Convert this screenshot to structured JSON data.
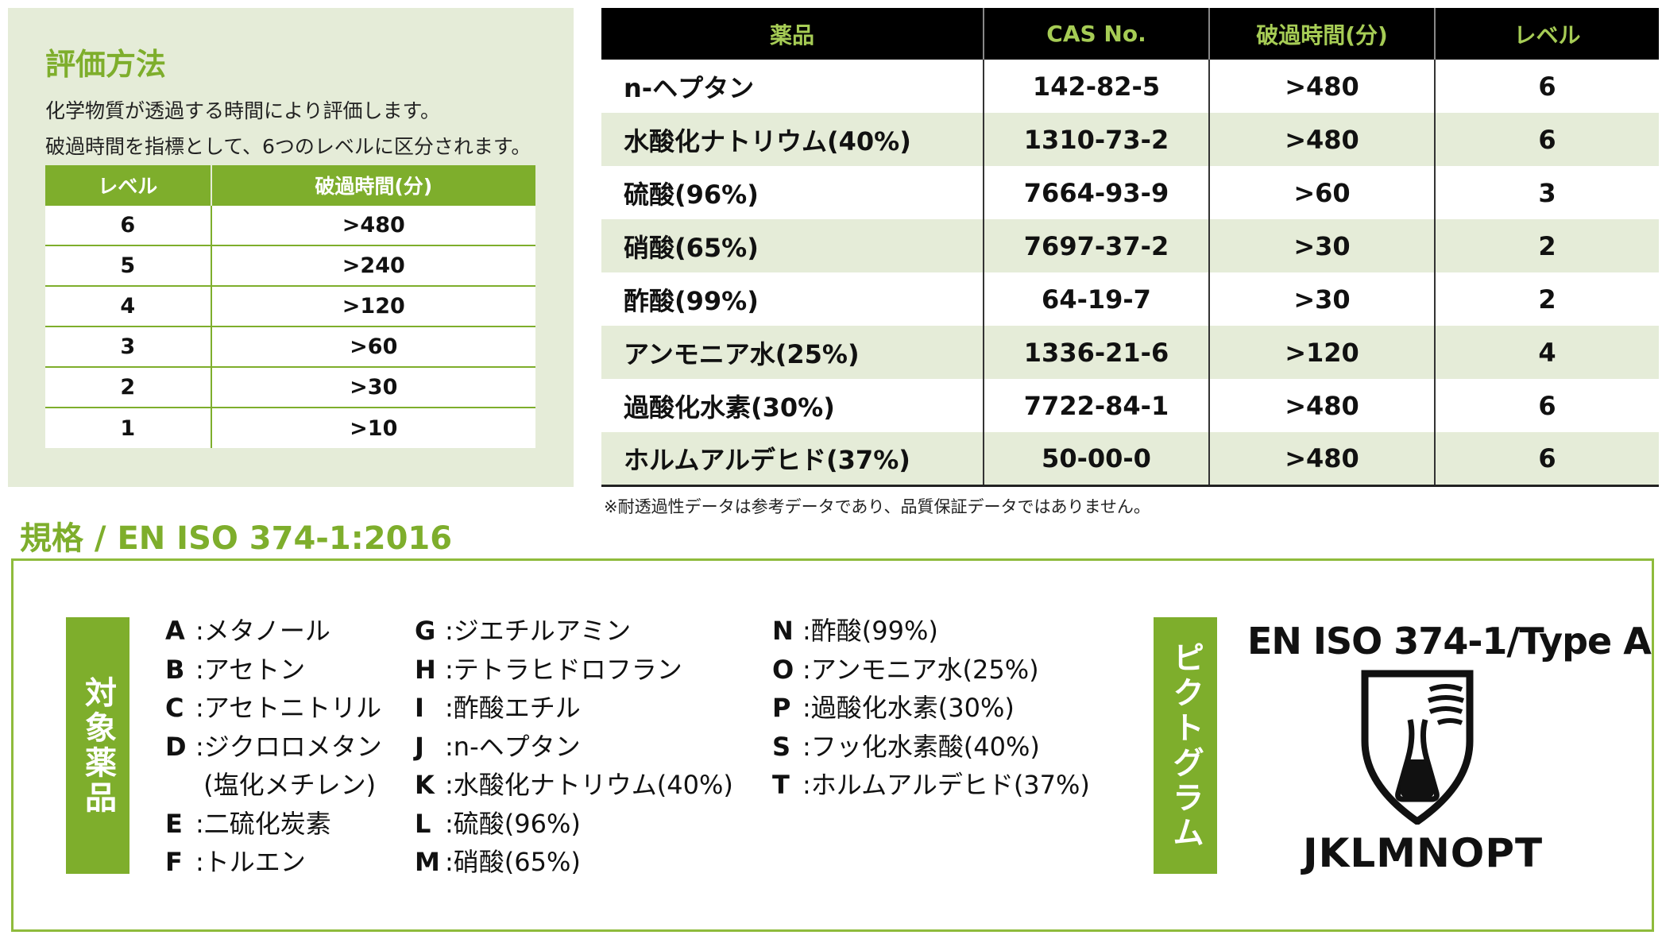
{
  "evaluation": {
    "title": "評価方法",
    "desc_line1": "化学物質が透過する時間により評価します。",
    "desc_line2": "破過時間を指標として、6つのレベルに区分されます。",
    "table": {
      "headers": [
        "レベル",
        "破過時間(分)"
      ],
      "rows": [
        [
          "6",
          ">480"
        ],
        [
          "5",
          ">240"
        ],
        [
          "4",
          ">120"
        ],
        [
          "3",
          ">60"
        ],
        [
          "2",
          ">30"
        ],
        [
          "1",
          ">10"
        ]
      ]
    }
  },
  "permeation_table": {
    "headers": [
      "薬品",
      "CAS No.",
      "破過時間(分)",
      "レベル"
    ],
    "rows": [
      [
        "n-ヘプタン",
        "142-82-5",
        ">480",
        "6"
      ],
      [
        "水酸化ナトリウム(40%)",
        "1310-73-2",
        ">480",
        "6"
      ],
      [
        "硫酸(96%)",
        "7664-93-9",
        ">60",
        "3"
      ],
      [
        "硝酸(65%)",
        "7697-37-2",
        ">30",
        "2"
      ],
      [
        "酢酸(99%)",
        "64-19-7",
        ">30",
        "2"
      ],
      [
        "アンモニア水(25%)",
        "1336-21-6",
        ">120",
        "4"
      ],
      [
        "過酸化水素(30%)",
        "7722-84-1",
        ">480",
        "6"
      ],
      [
        "ホルムアルデヒド(37%)",
        "50-00-0",
        ">480",
        "6"
      ]
    ],
    "note": "※耐透過性データは参考データであり、品質保証データではありません。"
  },
  "standard": {
    "title": "規格 / EN ISO 374-1:2016",
    "target_label": "対象薬品",
    "chemicals_col1": [
      {
        "key": "A",
        "name": "メタノール"
      },
      {
        "key": "B",
        "name": "アセトン"
      },
      {
        "key": "C",
        "name": "アセトニトリル"
      },
      {
        "key": "D",
        "name": "ジクロロメタン"
      },
      {
        "key": "",
        "name": "(塩化メチレン)"
      },
      {
        "key": "E",
        "name": "二硫化炭素"
      },
      {
        "key": "F",
        "name": "トルエン"
      }
    ],
    "chemicals_col2": [
      {
        "key": "G",
        "name": "ジエチルアミン"
      },
      {
        "key": "H",
        "name": "テトラヒドロフラン"
      },
      {
        "key": "I",
        "name": "酢酸エチル"
      },
      {
        "key": "J",
        "name": "n-ヘプタン"
      },
      {
        "key": "K",
        "name": "水酸化ナトリウム(40%)"
      },
      {
        "key": "L",
        "name": "硫酸(96%)"
      },
      {
        "key": "M",
        "name": "硝酸(65%)"
      }
    ],
    "chemicals_col3": [
      {
        "key": "N",
        "name": "酢酸(99%)"
      },
      {
        "key": "O",
        "name": "アンモニア水(25%)"
      },
      {
        "key": "P",
        "name": "過酸化水素(30%)"
      },
      {
        "key": "S",
        "name": "フッ化水素酸(40%)"
      },
      {
        "key": "T",
        "name": "ホルムアルデヒド(37%)"
      }
    ],
    "pictogram_label": "ピクトグラム",
    "pictogram_title": "EN ISO 374-1/Type A",
    "pictogram_icon": "chemical-flask-shield-icon",
    "pictogram_code": "JKLMNOPT"
  },
  "colors": {
    "accent_green": "#7eae2c",
    "light_green_bg": "#e5ecd8",
    "header_black": "#000000",
    "header_text_green": "#a6cc55"
  }
}
